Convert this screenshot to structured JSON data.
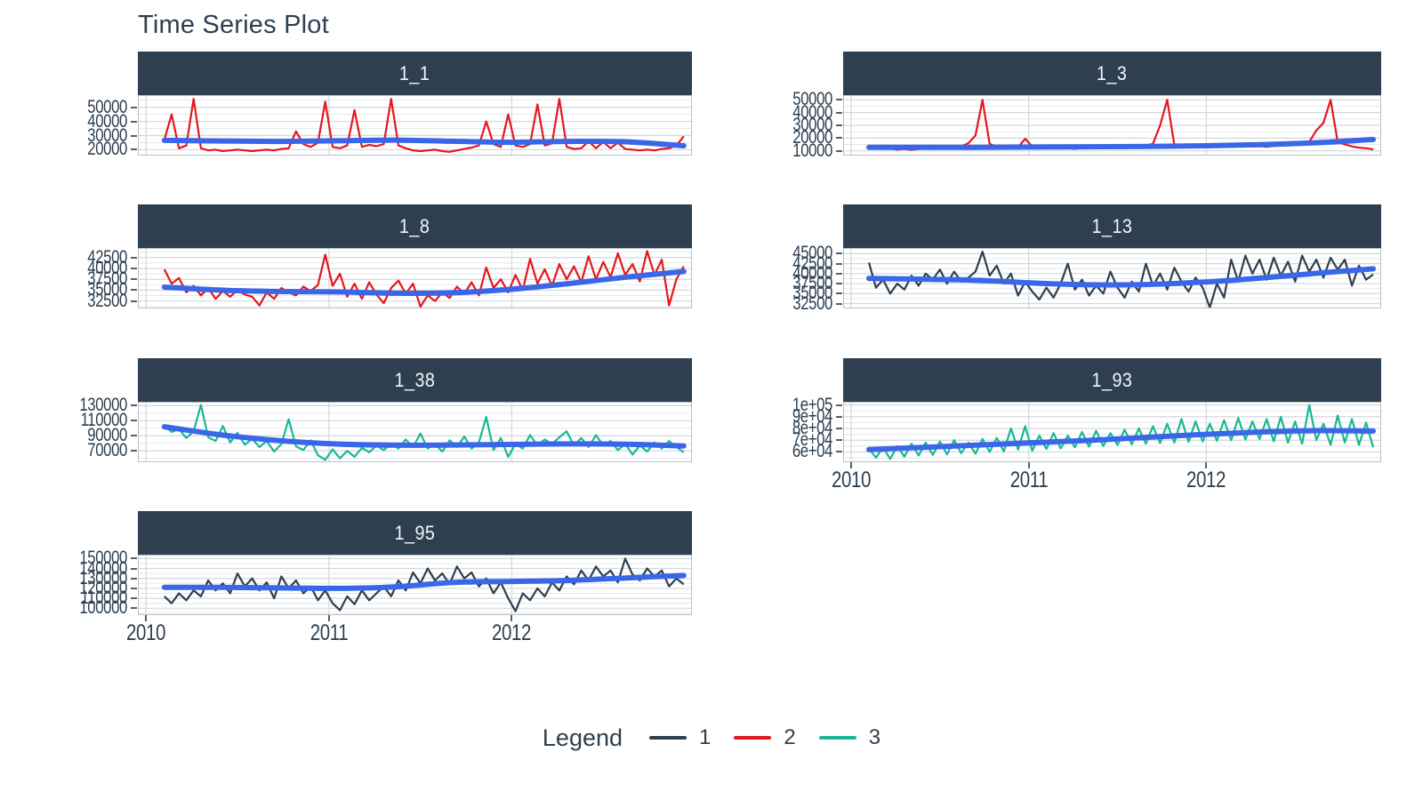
{
  "chart_data": {
    "type": "line",
    "title": "Time Series Plot",
    "x_domain": [
      2009.96,
      2012.98
    ],
    "x_ticks": [
      2010,
      2011,
      2012
    ],
    "x_start": 2010.1,
    "x_step": 0.04,
    "grid": "on",
    "legend": {
      "title": "Legend",
      "position": "bottom",
      "entries": [
        {
          "label": "1",
          "color": "#2e3f50"
        },
        {
          "label": "2",
          "color": "#e3181d"
        },
        {
          "label": "3",
          "color": "#17b897"
        }
      ]
    },
    "colors": {
      "strip_bg": "#2e3f50",
      "strip_text": "#f4f6f8",
      "smooth_line": "#3a66e8",
      "axis_text": "#2e3f50",
      "grid_major": "#d3d7db",
      "grid_minor": "#e4e7ea",
      "panel_border": "#b9c0c7"
    },
    "panels": [
      {
        "title": "1_1",
        "series": "2",
        "row": 0,
        "col": 0,
        "show_x_axis": false,
        "y_domain": [
          16500,
          58000
        ],
        "y_ticks": [
          {
            "v": 20000,
            "label": "20000"
          },
          {
            "v": 30000,
            "label": "30000"
          },
          {
            "v": 40000,
            "label": "40000"
          },
          {
            "v": 50000,
            "label": "50000"
          }
        ],
        "values": [
          27000,
          45000,
          21000,
          23000,
          56000,
          21000,
          19500,
          20000,
          19000,
          19500,
          20000,
          19500,
          19000,
          19500,
          20000,
          19500,
          20500,
          21000,
          33000,
          24000,
          22000,
          25000,
          54000,
          22000,
          21000,
          23000,
          48000,
          22000,
          23500,
          22500,
          24000,
          56000,
          23000,
          21000,
          19500,
          19000,
          19500,
          20000,
          19000,
          18500,
          19500,
          20500,
          21500,
          23000,
          40000,
          24000,
          22000,
          45000,
          23000,
          22000,
          24000,
          52000,
          23000,
          24500,
          56000,
          22000,
          20500,
          21000,
          26000,
          21000,
          25500,
          21000,
          25000,
          20500,
          20000,
          19500,
          20000,
          19500,
          20500,
          21000,
          23000,
          29500
        ],
        "trend": [
          26600,
          26200,
          25900,
          26300,
          26800,
          26000,
          25300,
          25900,
          25600,
          22800
        ]
      },
      {
        "title": "1_3",
        "series": "2",
        "row": 0,
        "col": 1,
        "show_x_axis": false,
        "y_domain": [
          7000,
          53000
        ],
        "y_ticks": [
          {
            "v": 10000,
            "label": "10000"
          },
          {
            "v": 20000,
            "label": "20000"
          },
          {
            "v": 30000,
            "label": "30000"
          },
          {
            "v": 40000,
            "label": "40000"
          },
          {
            "v": 50000,
            "label": "50000"
          }
        ],
        "values": [
          12500,
          12000,
          11500,
          12000,
          11000,
          11500,
          10800,
          11500,
          12000,
          11500,
          12500,
          12000,
          13000,
          13500,
          16000,
          22000,
          50000,
          15500,
          13000,
          12500,
          13000,
          12800,
          19500,
          13500,
          12500,
          12000,
          12500,
          11800,
          12200,
          11500,
          12800,
          12200,
          13000,
          12500,
          13200,
          12800,
          13500,
          13000,
          13800,
          14200,
          15500,
          30000,
          50000,
          14500,
          13500,
          13000,
          13500,
          13200,
          14000,
          13500,
          14200,
          13800,
          14500,
          14000,
          13500,
          14000,
          13200,
          13800,
          14500,
          15000,
          15500,
          16000,
          17000,
          26000,
          32000,
          50000,
          17000,
          15000,
          13500,
          12500,
          12000,
          11200
        ],
        "trend": [
          12800,
          12700,
          12800,
          13000,
          13200,
          13500,
          14000,
          14900,
          16400,
          18900
        ]
      },
      {
        "title": "1_8",
        "series": "2",
        "row": 1,
        "col": 0,
        "show_x_axis": false,
        "y_domain": [
          31000,
          44500
        ],
        "y_ticks": [
          {
            "v": 32500,
            "label": "32500"
          },
          {
            "v": 35000,
            "label": "35000"
          },
          {
            "v": 37500,
            "label": "37500"
          },
          {
            "v": 40000,
            "label": "40000"
          },
          {
            "v": 42500,
            "label": "42500"
          }
        ],
        "values": [
          39800,
          36500,
          37800,
          34500,
          36000,
          33800,
          35500,
          33000,
          34800,
          33500,
          35000,
          34000,
          33500,
          31500,
          34500,
          33000,
          35500,
          34500,
          33800,
          35800,
          34800,
          36200,
          43200,
          36000,
          38800,
          33500,
          36500,
          33000,
          36800,
          34000,
          32000,
          35500,
          37200,
          34200,
          36500,
          31200,
          33800,
          32500,
          34500,
          33200,
          35800,
          34200,
          36800,
          33800,
          40200,
          35500,
          37500,
          34500,
          38500,
          35000,
          42200,
          36500,
          39800,
          36000,
          41000,
          37500,
          40500,
          36800,
          42800,
          37500,
          41500,
          38000,
          43500,
          38500,
          41000,
          37000,
          44000,
          38500,
          42000,
          31500,
          37500,
          40500
        ],
        "trend": [
          35700,
          35000,
          34700,
          34600,
          34300,
          34400,
          35200,
          36500,
          38000,
          39300
        ]
      },
      {
        "title": "1_13",
        "series": "1",
        "row": 1,
        "col": 1,
        "show_x_axis": false,
        "y_domain": [
          31500,
          46200
        ],
        "y_ticks": [
          {
            "v": 32500,
            "label": "32500"
          },
          {
            "v": 35000,
            "label": "35000"
          },
          {
            "v": 37500,
            "label": "37500"
          },
          {
            "v": 40000,
            "label": "40000"
          },
          {
            "v": 42500,
            "label": "42500"
          },
          {
            "v": 45000,
            "label": "45000"
          }
        ],
        "values": [
          42800,
          36500,
          38500,
          35000,
          37500,
          36000,
          39500,
          37000,
          40000,
          38500,
          41000,
          37500,
          40500,
          38000,
          39000,
          40500,
          45500,
          39500,
          42000,
          37500,
          40000,
          34500,
          38000,
          35500,
          33500,
          36500,
          34000,
          37500,
          42500,
          36000,
          38500,
          34500,
          37000,
          35000,
          40500,
          36500,
          34000,
          38000,
          35500,
          42500,
          37000,
          40000,
          36000,
          41500,
          38000,
          35500,
          39000,
          36500,
          31500,
          37500,
          34000,
          43500,
          38000,
          44500,
          40000,
          43500,
          38500,
          44000,
          39500,
          43000,
          38000,
          44500,
          40500,
          43500,
          39000,
          44000,
          41000,
          43500,
          37000,
          42000,
          38500,
          39800
        ],
        "trend": [
          38800,
          38600,
          38300,
          37600,
          37200,
          37300,
          37900,
          38900,
          40100,
          41200
        ]
      },
      {
        "title": "1_38",
        "series": "3",
        "row": 2,
        "col": 0,
        "show_x_axis": false,
        "y_domain": [
          56000,
          134000
        ],
        "y_ticks": [
          {
            "v": 70000,
            "label": "70000"
          },
          {
            "v": 90000,
            "label": "90000"
          },
          {
            "v": 110000,
            "label": "110000"
          },
          {
            "v": 130000,
            "label": "130000"
          }
        ],
        "values": [
          104000,
          95000,
          99000,
          87000,
          96000,
          131000,
          88000,
          83000,
          103000,
          81000,
          94000,
          78000,
          86000,
          75000,
          83000,
          69000,
          79000,
          112000,
          76000,
          71000,
          84000,
          64000,
          58000,
          72000,
          60000,
          70000,
          62000,
          74000,
          68000,
          77000,
          71000,
          79000,
          73000,
          85000,
          75000,
          93000,
          73000,
          79000,
          69000,
          84000,
          75000,
          89000,
          73000,
          81000,
          115000,
          71000,
          87000,
          62000,
          79000,
          73000,
          91000,
          77000,
          85000,
          79000,
          88000,
          96000,
          77000,
          87000,
          75000,
          91000,
          77000,
          83000,
          71000,
          79000,
          65000,
          77000,
          69000,
          81000,
          73000,
          83000,
          75000,
          68000
        ],
        "trend": [
          102000,
          91000,
          83500,
          79000,
          77500,
          77800,
          78500,
          79200,
          78800,
          76500
        ]
      },
      {
        "title": "1_93",
        "series": "3",
        "row": 2,
        "col": 1,
        "show_x_axis": true,
        "y_domain": [
          52000,
          102000
        ],
        "y_ticks": [
          {
            "v": 60000,
            "label": "6e+04"
          },
          {
            "v": 70000,
            "label": "7e+04"
          },
          {
            "v": 80000,
            "label": "8e+04"
          },
          {
            "v": 90000,
            "label": "9e+04"
          },
          {
            "v": 100000,
            "label": "1e+05"
          }
        ],
        "values": [
          63000,
          55000,
          64000,
          54000,
          65000,
          56000,
          67000,
          57000,
          68000,
          57500,
          69000,
          58000,
          70000,
          59000,
          68000,
          58500,
          71000,
          60000,
          72000,
          60500,
          80000,
          62000,
          82000,
          61000,
          74000,
          62500,
          76000,
          63000,
          74000,
          64000,
          77000,
          64500,
          78000,
          65000,
          76000,
          66000,
          79000,
          66500,
          80000,
          67000,
          82000,
          67500,
          84000,
          68000,
          88000,
          68500,
          86000,
          69000,
          84000,
          69500,
          87000,
          70000,
          89000,
          70500,
          86000,
          71000,
          88000,
          69000,
          90000,
          68000,
          86000,
          67000,
          100000,
          70000,
          84000,
          66000,
          91000,
          68000,
          88000,
          66000,
          85000,
          64000
        ],
        "trend": [
          62000,
          64000,
          66000,
          68000,
          70000,
          72500,
          75000,
          77000,
          78200,
          77800
        ]
      },
      {
        "title": "1_95",
        "series": "1",
        "row": 3,
        "col": 0,
        "show_x_axis": true,
        "y_domain": [
          94000,
          153000
        ],
        "y_ticks": [
          {
            "v": 100000,
            "label": "100000"
          },
          {
            "v": 110000,
            "label": "110000"
          },
          {
            "v": 120000,
            "label": "120000"
          },
          {
            "v": 130000,
            "label": "130000"
          },
          {
            "v": 140000,
            "label": "140000"
          },
          {
            "v": 150000,
            "label": "150000"
          }
        ],
        "values": [
          112000,
          105000,
          115000,
          108000,
          118000,
          112000,
          128000,
          118000,
          125000,
          115000,
          135000,
          122000,
          130000,
          118000,
          126000,
          110000,
          132000,
          120000,
          128000,
          115000,
          122000,
          108000,
          118000,
          105000,
          98000,
          112000,
          104000,
          118000,
          108000,
          115000,
          122000,
          112000,
          128000,
          118000,
          136000,
          125000,
          140000,
          128000,
          135000,
          124000,
          142000,
          130000,
          136000,
          122000,
          130000,
          115000,
          126000,
          110000,
          97000,
          115000,
          108000,
          120000,
          112000,
          126000,
          118000,
          132000,
          124000,
          138000,
          128000,
          142000,
          132000,
          138000,
          126000,
          150000,
          134000,
          128000,
          140000,
          132000,
          138000,
          122000,
          130000,
          124000
        ],
        "trend": [
          121000,
          121000,
          120500,
          120000,
          121500,
          126000,
          127000,
          128000,
          130500,
          133000
        ]
      }
    ]
  }
}
